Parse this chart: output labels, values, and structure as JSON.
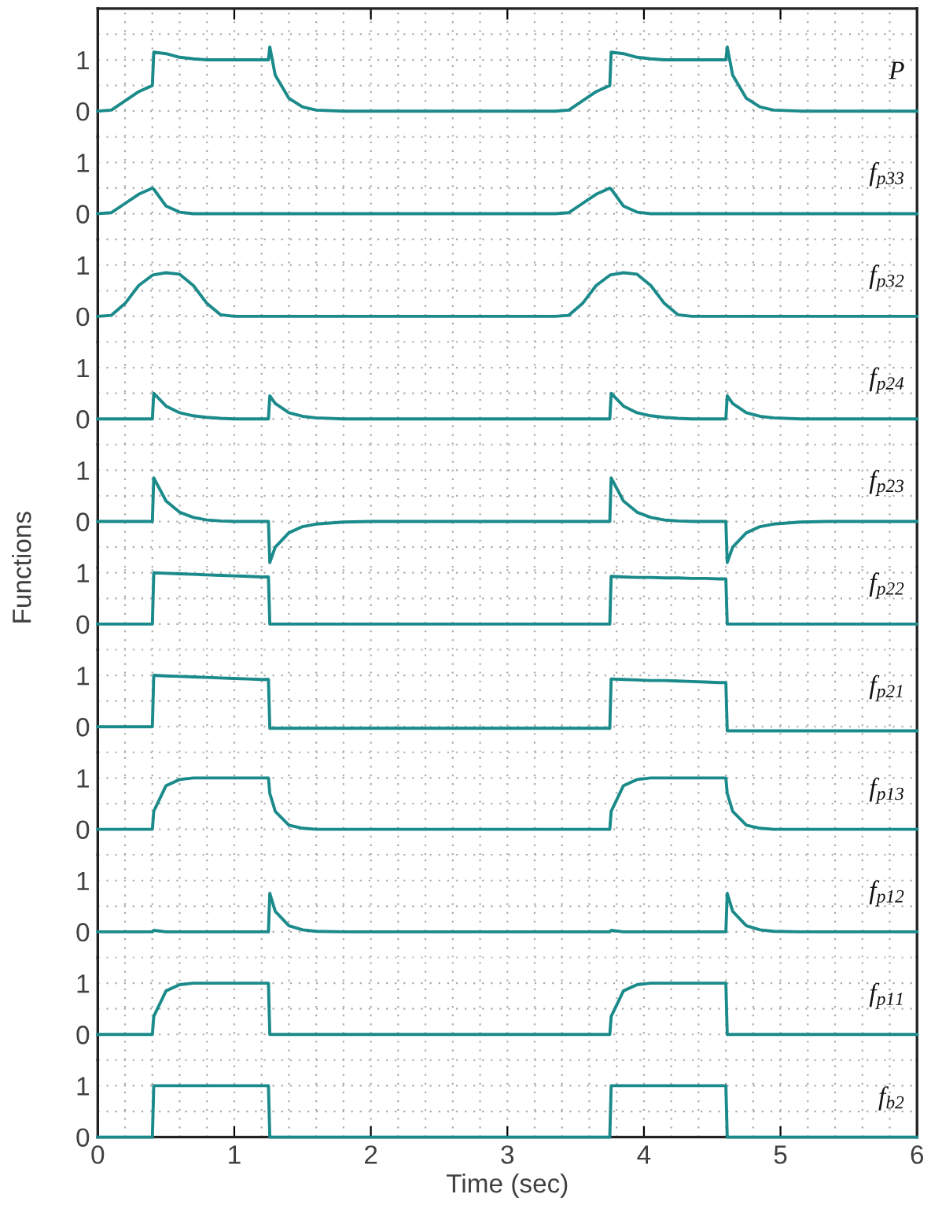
{
  "chart_data": [
    {
      "type": "line",
      "grid": true,
      "tick_labels": "y",
      "xlim": [
        0,
        6
      ],
      "xticks": [
        0,
        1,
        2,
        3,
        4,
        5,
        6
      ],
      "ylim": [
        -0.5,
        2
      ],
      "yticks": [
        0,
        1
      ],
      "x": [
        0,
        0.1,
        0.2,
        0.3,
        0.4,
        0.41,
        0.5,
        0.6,
        0.7,
        0.8,
        0.9,
        1.0,
        1.1,
        1.2,
        1.25,
        1.26,
        1.3,
        1.4,
        1.5,
        1.6,
        1.8,
        2.0,
        2.5,
        3.0,
        3.35,
        3.45,
        3.55,
        3.65,
        3.75,
        3.76,
        3.85,
        3.95,
        4.05,
        4.15,
        4.25,
        4.35,
        4.45,
        4.55,
        4.6,
        4.61,
        4.65,
        4.75,
        4.85,
        4.95,
        5.15,
        5.35,
        5.85,
        6.0
      ],
      "series": [
        {
          "name": "P",
          "color": "#1b8a8a",
          "values": [
            0,
            0.02,
            0.2,
            0.38,
            0.5,
            1.15,
            1.12,
            1.05,
            1.02,
            1,
            1,
            1,
            1,
            1,
            1,
            1.25,
            0.7,
            0.25,
            0.08,
            0.02,
            0,
            0,
            0,
            0,
            0,
            0.02,
            0.2,
            0.38,
            0.5,
            1.15,
            1.12,
            1.05,
            1.02,
            1,
            1,
            1,
            1,
            1,
            1,
            1.25,
            0.7,
            0.25,
            0.08,
            0.02,
            0,
            0,
            0,
            0
          ]
        }
      ]
    },
    {
      "type": "line",
      "grid": true,
      "tick_labels": "y",
      "xlim": [
        0,
        6
      ],
      "xticks": [
        0,
        1,
        2,
        3,
        4,
        5,
        6
      ],
      "ylim": [
        -0.5,
        1.5
      ],
      "yticks": [
        0,
        1
      ],
      "x": [
        0,
        0.1,
        0.2,
        0.3,
        0.4,
        0.41,
        0.5,
        0.6,
        0.7,
        0.8,
        0.9,
        1.0,
        1.1,
        1.2,
        1.25,
        1.26,
        1.3,
        1.4,
        1.5,
        1.6,
        1.8,
        2.0,
        2.5,
        3.0,
        3.35,
        3.45,
        3.55,
        3.65,
        3.75,
        3.76,
        3.85,
        3.95,
        4.05,
        4.15,
        4.25,
        4.35,
        4.45,
        4.55,
        4.6,
        4.61,
        4.65,
        4.75,
        4.85,
        4.95,
        5.15,
        5.35,
        5.85,
        6.0
      ],
      "series": [
        {
          "name": "f$_{p33}$",
          "color": "#1b8a8a",
          "values": [
            0,
            0.02,
            0.2,
            0.38,
            0.5,
            0.48,
            0.15,
            0.03,
            0,
            0,
            0,
            0,
            0,
            0,
            0,
            0,
            0,
            0,
            0,
            0,
            0,
            0,
            0,
            0,
            0,
            0.02,
            0.2,
            0.38,
            0.5,
            0.48,
            0.15,
            0.03,
            0,
            0,
            0,
            0,
            0,
            0,
            0,
            0,
            0,
            0,
            0,
            0,
            0,
            0,
            0,
            0
          ]
        }
      ]
    },
    {
      "type": "line",
      "grid": true,
      "tick_labels": "y",
      "xlim": [
        0,
        6
      ],
      "xticks": [
        0,
        1,
        2,
        3,
        4,
        5,
        6
      ],
      "ylim": [
        -0.5,
        1.5
      ],
      "yticks": [
        0,
        1
      ],
      "x": [
        0,
        0.1,
        0.2,
        0.3,
        0.4,
        0.41,
        0.5,
        0.6,
        0.7,
        0.8,
        0.9,
        1.0,
        1.1,
        1.2,
        1.25,
        1.26,
        1.3,
        1.4,
        1.5,
        1.6,
        1.8,
        2.0,
        2.5,
        3.0,
        3.35,
        3.45,
        3.55,
        3.65,
        3.75,
        3.76,
        3.85,
        3.95,
        4.05,
        4.15,
        4.25,
        4.35,
        4.45,
        4.55,
        4.6,
        4.61,
        4.65,
        4.75,
        4.85,
        4.95,
        5.15,
        5.35,
        5.85,
        6.0
      ],
      "series": [
        {
          "name": "f$_{p32}$",
          "color": "#1b8a8a",
          "values": [
            0,
            0.02,
            0.25,
            0.6,
            0.8,
            0.81,
            0.85,
            0.82,
            0.6,
            0.25,
            0.03,
            0,
            0,
            0,
            0,
            0,
            0,
            0,
            0,
            0,
            0,
            0,
            0,
            0,
            0,
            0.02,
            0.25,
            0.6,
            0.8,
            0.81,
            0.85,
            0.82,
            0.6,
            0.25,
            0.03,
            0,
            0,
            0,
            0,
            0,
            0,
            0,
            0,
            0,
            0,
            0,
            0,
            0
          ]
        }
      ]
    },
    {
      "type": "line",
      "grid": true,
      "tick_labels": "y",
      "xlim": [
        0,
        6
      ],
      "xticks": [
        0,
        1,
        2,
        3,
        4,
        5,
        6
      ],
      "ylim": [
        -0.5,
        1.5
      ],
      "yticks": [
        0,
        1
      ],
      "x": [
        0,
        0.1,
        0.2,
        0.3,
        0.4,
        0.41,
        0.5,
        0.6,
        0.7,
        0.8,
        0.9,
        1.0,
        1.1,
        1.2,
        1.25,
        1.26,
        1.3,
        1.4,
        1.5,
        1.6,
        1.8,
        2.0,
        2.5,
        3.0,
        3.35,
        3.45,
        3.55,
        3.65,
        3.75,
        3.76,
        3.85,
        3.95,
        4.05,
        4.15,
        4.25,
        4.35,
        4.45,
        4.55,
        4.6,
        4.61,
        4.65,
        4.75,
        4.85,
        4.95,
        5.15,
        5.35,
        5.85,
        6.0
      ],
      "series": [
        {
          "name": "f$_{p24}$",
          "color": "#1b8a8a",
          "values": [
            0,
            0,
            0,
            0,
            0,
            0.5,
            0.25,
            0.12,
            0.06,
            0.03,
            0.01,
            0,
            0,
            0,
            0,
            0.45,
            0.3,
            0.12,
            0.05,
            0.02,
            0,
            0,
            0,
            0,
            0,
            0,
            0,
            0,
            0,
            0.5,
            0.25,
            0.12,
            0.06,
            0.03,
            0.01,
            0,
            0,
            0,
            0,
            0.45,
            0.3,
            0.12,
            0.05,
            0.02,
            0,
            0,
            0,
            0
          ]
        }
      ]
    },
    {
      "type": "line",
      "grid": true,
      "tick_labels": "y",
      "xlim": [
        0,
        6
      ],
      "xticks": [
        0,
        1,
        2,
        3,
        4,
        5,
        6
      ],
      "ylim": [
        -0.9,
        1.5
      ],
      "yticks": [
        0,
        1
      ],
      "x": [
        0,
        0.1,
        0.2,
        0.3,
        0.4,
        0.41,
        0.5,
        0.6,
        0.7,
        0.8,
        0.9,
        1.0,
        1.1,
        1.2,
        1.25,
        1.26,
        1.3,
        1.4,
        1.5,
        1.6,
        1.8,
        2.0,
        2.5,
        3.0,
        3.35,
        3.45,
        3.55,
        3.65,
        3.75,
        3.76,
        3.85,
        3.95,
        4.05,
        4.15,
        4.25,
        4.35,
        4.45,
        4.55,
        4.6,
        4.61,
        4.65,
        4.75,
        4.85,
        4.95,
        5.15,
        5.35,
        5.85,
        6.0
      ],
      "series": [
        {
          "name": "f$_{p23}$",
          "color": "#1b8a8a",
          "values": [
            0,
            0,
            0,
            0,
            0,
            0.85,
            0.4,
            0.18,
            0.08,
            0.03,
            0.01,
            0,
            0,
            0,
            0,
            -0.8,
            -0.5,
            -0.22,
            -0.1,
            -0.05,
            -0.01,
            0,
            0,
            0,
            0,
            0,
            0,
            0,
            0,
            0.85,
            0.4,
            0.18,
            0.08,
            0.03,
            0.01,
            0,
            0,
            0,
            0,
            -0.8,
            -0.5,
            -0.22,
            -0.1,
            -0.05,
            -0.01,
            0,
            0,
            0
          ]
        }
      ]
    },
    {
      "type": "line",
      "grid": true,
      "tick_labels": "y",
      "ylabel": "Functions",
      "xlim": [
        0,
        6
      ],
      "xticks": [
        0,
        1,
        2,
        3,
        4,
        5,
        6
      ],
      "ylim": [
        -0.5,
        1.1
      ],
      "yticks": [
        0,
        1
      ],
      "x": [
        0,
        0.1,
        0.2,
        0.3,
        0.4,
        0.41,
        0.5,
        0.6,
        0.7,
        0.8,
        0.9,
        1.0,
        1.1,
        1.2,
        1.25,
        1.26,
        1.3,
        1.4,
        1.5,
        1.6,
        1.8,
        2.0,
        2.5,
        3.0,
        3.35,
        3.45,
        3.55,
        3.65,
        3.75,
        3.76,
        3.85,
        3.95,
        4.05,
        4.15,
        4.25,
        4.35,
        4.45,
        4.55,
        4.6,
        4.61,
        4.65,
        4.75,
        4.85,
        4.95,
        5.15,
        5.35,
        5.85,
        6.0
      ],
      "series": [
        {
          "name": "f$_{p22}$",
          "color": "#1b8a8a",
          "values": [
            0,
            0,
            0,
            0,
            0,
            1,
            0.99,
            0.98,
            0.97,
            0.96,
            0.95,
            0.94,
            0.93,
            0.92,
            0.92,
            0,
            0,
            0,
            0,
            0,
            0,
            0,
            0,
            0,
            0,
            0,
            0,
            0,
            0,
            0.93,
            0.92,
            0.91,
            0.91,
            0.9,
            0.9,
            0.89,
            0.89,
            0.88,
            0.88,
            0,
            0,
            0,
            0,
            0,
            0,
            0,
            0,
            0
          ]
        }
      ]
    },
    {
      "type": "line",
      "grid": true,
      "tick_labels": "y",
      "xlim": [
        0,
        6
      ],
      "xticks": [
        0,
        1,
        2,
        3,
        4,
        5,
        6
      ],
      "ylim": [
        -0.5,
        1.5
      ],
      "yticks": [
        0,
        1
      ],
      "x": [
        0,
        0.1,
        0.2,
        0.3,
        0.4,
        0.41,
        0.5,
        0.6,
        0.7,
        0.8,
        0.9,
        1.0,
        1.1,
        1.2,
        1.25,
        1.26,
        1.3,
        1.4,
        1.5,
        1.6,
        1.8,
        2.0,
        2.5,
        3.0,
        3.35,
        3.45,
        3.55,
        3.65,
        3.75,
        3.76,
        3.85,
        3.95,
        4.05,
        4.15,
        4.25,
        4.35,
        4.45,
        4.55,
        4.6,
        4.61,
        4.65,
        4.75,
        4.85,
        4.95,
        5.15,
        5.35,
        5.85,
        6.0
      ],
      "series": [
        {
          "name": "f$_{p21}$",
          "color": "#1b8a8a",
          "values": [
            0,
            0,
            0,
            0,
            0,
            1,
            0.99,
            0.98,
            0.97,
            0.96,
            0.95,
            0.94,
            0.93,
            0.92,
            0.92,
            -0.03,
            -0.03,
            -0.03,
            -0.03,
            -0.03,
            -0.03,
            -0.03,
            -0.03,
            -0.03,
            -0.03,
            -0.03,
            -0.03,
            -0.03,
            -0.03,
            0.93,
            0.92,
            0.91,
            0.9,
            0.9,
            0.89,
            0.88,
            0.87,
            0.86,
            0.86,
            -0.08,
            -0.08,
            -0.08,
            -0.08,
            -0.08,
            -0.08,
            -0.08,
            -0.08,
            -0.08
          ]
        }
      ]
    },
    {
      "type": "line",
      "grid": true,
      "tick_labels": "y",
      "xlim": [
        0,
        6
      ],
      "xticks": [
        0,
        1,
        2,
        3,
        4,
        5,
        6
      ],
      "ylim": [
        -0.5,
        1.5
      ],
      "yticks": [
        0,
        1
      ],
      "x": [
        0,
        0.1,
        0.2,
        0.3,
        0.4,
        0.41,
        0.5,
        0.6,
        0.7,
        0.8,
        0.9,
        1.0,
        1.1,
        1.2,
        1.25,
        1.26,
        1.3,
        1.4,
        1.5,
        1.6,
        1.8,
        2.0,
        2.5,
        3.0,
        3.35,
        3.45,
        3.55,
        3.65,
        3.75,
        3.76,
        3.85,
        3.95,
        4.05,
        4.15,
        4.25,
        4.35,
        4.45,
        4.55,
        4.6,
        4.61,
        4.65,
        4.75,
        4.85,
        4.95,
        5.15,
        5.35,
        5.85,
        6.0
      ],
      "series": [
        {
          "name": "f$_{p13}$",
          "color": "#1b8a8a",
          "values": [
            0,
            0,
            0,
            0,
            0,
            0.35,
            0.85,
            0.97,
            1,
            1,
            1,
            1,
            1,
            1,
            1,
            0.7,
            0.35,
            0.08,
            0.02,
            0,
            0,
            0,
            0,
            0,
            0,
            0,
            0,
            0,
            0,
            0.35,
            0.85,
            0.97,
            1,
            1,
            1,
            1,
            1,
            1,
            1,
            0.7,
            0.35,
            0.08,
            0.02,
            0,
            0,
            0,
            0,
            0
          ]
        }
      ]
    },
    {
      "type": "line",
      "grid": true,
      "tick_labels": "y",
      "xlim": [
        0,
        6
      ],
      "xticks": [
        0,
        1,
        2,
        3,
        4,
        5,
        6
      ],
      "ylim": [
        -0.5,
        1.5
      ],
      "yticks": [
        0,
        1
      ],
      "x": [
        0,
        0.1,
        0.2,
        0.3,
        0.4,
        0.41,
        0.5,
        0.6,
        0.7,
        0.8,
        0.9,
        1.0,
        1.1,
        1.2,
        1.25,
        1.26,
        1.3,
        1.4,
        1.5,
        1.6,
        1.8,
        2.0,
        2.5,
        3.0,
        3.35,
        3.45,
        3.55,
        3.65,
        3.75,
        3.76,
        3.85,
        3.95,
        4.05,
        4.15,
        4.25,
        4.35,
        4.45,
        4.55,
        4.6,
        4.61,
        4.65,
        4.75,
        4.85,
        4.95,
        5.15,
        5.35,
        5.85,
        6.0
      ],
      "series": [
        {
          "name": "f$_{p12}$",
          "color": "#1b8a8a",
          "values": [
            0,
            0,
            0,
            0,
            0,
            0.03,
            0,
            0,
            0,
            0,
            0,
            0,
            0,
            0,
            0,
            0.75,
            0.4,
            0.12,
            0.04,
            0.01,
            0,
            0,
            0,
            0,
            0,
            0,
            0,
            0,
            0,
            0.03,
            0,
            0,
            0,
            0,
            0,
            0,
            0,
            0,
            0,
            0.75,
            0.4,
            0.12,
            0.04,
            0.01,
            0,
            0,
            0,
            0
          ]
        }
      ]
    },
    {
      "type": "line",
      "grid": true,
      "tick_labels": "y",
      "xlim": [
        0,
        6
      ],
      "xticks": [
        0,
        1,
        2,
        3,
        4,
        5,
        6
      ],
      "ylim": [
        -0.5,
        1.5
      ],
      "yticks": [
        0,
        1
      ],
      "x": [
        0,
        0.1,
        0.2,
        0.3,
        0.4,
        0.41,
        0.5,
        0.6,
        0.7,
        0.8,
        0.9,
        1.0,
        1.1,
        1.2,
        1.25,
        1.26,
        1.3,
        1.4,
        1.5,
        1.6,
        1.8,
        2.0,
        2.5,
        3.0,
        3.35,
        3.45,
        3.55,
        3.65,
        3.75,
        3.76,
        3.85,
        3.95,
        4.05,
        4.15,
        4.25,
        4.35,
        4.45,
        4.55,
        4.6,
        4.61,
        4.65,
        4.75,
        4.85,
        4.95,
        5.15,
        5.35,
        5.85,
        6.0
      ],
      "series": [
        {
          "name": "f$_{p11}$",
          "color": "#1b8a8a",
          "values": [
            0,
            0,
            0,
            0,
            0,
            0.35,
            0.85,
            0.97,
            1,
            1,
            1,
            1,
            1,
            1,
            1,
            0,
            0,
            0,
            0,
            0,
            0,
            0,
            0,
            0,
            0,
            0,
            0,
            0,
            0,
            0.35,
            0.85,
            0.97,
            1,
            1,
            1,
            1,
            1,
            1,
            1,
            0,
            0,
            0,
            0,
            0,
            0,
            0,
            0,
            0
          ]
        }
      ]
    },
    {
      "type": "line",
      "grid": true,
      "xlabel": "Time (sec)",
      "xlim": [
        0,
        6
      ],
      "xticks": [
        0,
        1,
        2,
        3,
        4,
        5,
        6
      ],
      "ylim": [
        0,
        1.5
      ],
      "yticks": [
        0,
        1
      ],
      "x": [
        0,
        0.1,
        0.2,
        0.3,
        0.4,
        0.41,
        0.5,
        0.6,
        0.7,
        0.8,
        0.9,
        1.0,
        1.1,
        1.2,
        1.25,
        1.26,
        1.3,
        1.4,
        1.5,
        1.6,
        1.8,
        2.0,
        2.5,
        3.0,
        3.35,
        3.45,
        3.55,
        3.65,
        3.75,
        3.76,
        3.85,
        3.95,
        4.05,
        4.15,
        4.25,
        4.35,
        4.45,
        4.55,
        4.6,
        4.61,
        4.65,
        4.75,
        4.85,
        4.95,
        5.15,
        5.35,
        5.85,
        6.0
      ],
      "series": [
        {
          "name": "f$_{b2}$",
          "color": "#1b8a8a",
          "values": [
            0,
            0,
            0,
            0,
            0,
            1,
            1,
            1,
            1,
            1,
            1,
            1,
            1,
            1,
            1,
            0,
            0,
            0,
            0,
            0,
            0,
            0,
            0,
            0,
            0,
            0,
            0,
            0,
            0,
            1,
            1,
            1,
            1,
            1,
            1,
            1,
            1,
            1,
            1,
            0,
            0,
            0,
            0,
            0,
            0,
            0,
            0,
            0
          ]
        }
      ]
    }
  ]
}
